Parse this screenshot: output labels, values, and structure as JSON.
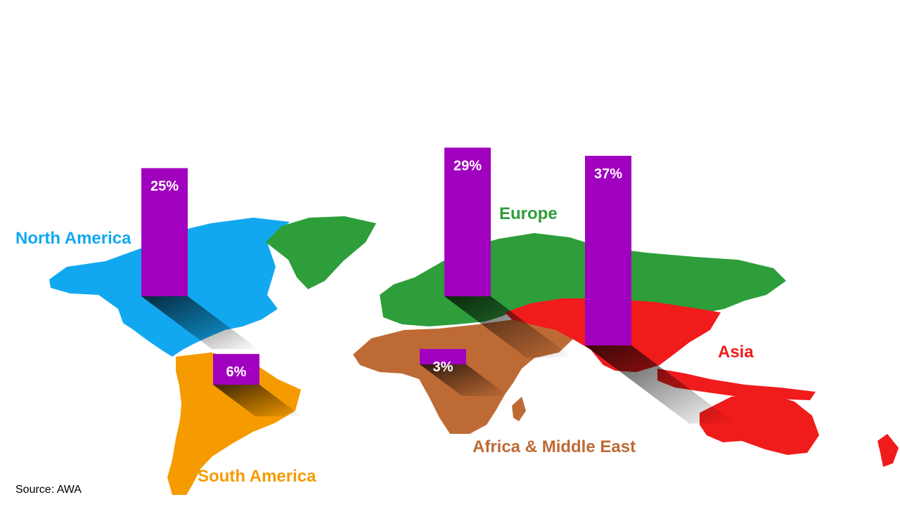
{
  "chart_data": {
    "type": "bar",
    "categories": [
      "North America",
      "South America",
      "Europe",
      "Africa & Middle East",
      "Asia"
    ],
    "values": [
      25,
      6,
      29,
      3,
      37
    ],
    "value_labels": [
      "25%",
      "6%",
      "29%",
      "3%",
      "37%"
    ],
    "unit": "%"
  },
  "region_colors": {
    "North America": "#12A8F0",
    "South America": "#F59B00",
    "Europe": "#2E9E3A",
    "Africa & Middle East": "#BE6A35",
    "Asia": "#F01B1B"
  },
  "bar_color": "#A100BE",
  "source": "Source: AWA"
}
